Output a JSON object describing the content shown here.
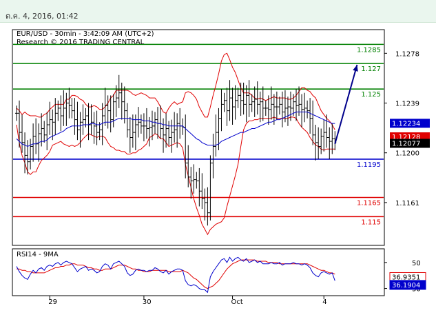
{
  "header": {
    "timestamp": "ต.ค. 4, 2016, 01:42"
  },
  "chart_data": {
    "type": "line",
    "title": "EUR/USD - 30min - 3:42:09 AM (UTC+2)",
    "subtitle": "Research © 2016 TRADING CENTRAL",
    "price_range": [
      1.1128,
      1.1296
    ],
    "yticks": [
      {
        "value": 1.1278,
        "label": "1.1278"
      },
      {
        "value": 1.1239,
        "label": "1.1239"
      },
      {
        "value": 1.12,
        "label": "1.1200"
      },
      {
        "value": 1.1161,
        "label": "1.1161"
      }
    ],
    "x_ticks": [
      {
        "index": 12,
        "label": "29"
      },
      {
        "index": 46,
        "label": "30"
      },
      {
        "index": 79,
        "label": ""
      },
      {
        "index": 78,
        "label": "Oct"
      },
      {
        "index": 111,
        "label": "4"
      }
    ],
    "levels": [
      {
        "value": 1.1285,
        "label": "1.1285",
        "color": "#008000"
      },
      {
        "value": 1.127,
        "label": "1.127",
        "color": "#008000"
      },
      {
        "value": 1.125,
        "label": "1.125",
        "color": "#008000"
      },
      {
        "value": 1.1195,
        "label": "1.1195",
        "color": "#0000cc"
      },
      {
        "value": 1.1165,
        "label": "1.1165",
        "color": "#e00000"
      },
      {
        "value": 1.115,
        "label": "1.115",
        "color": "#e00000"
      }
    ],
    "price_badges": [
      {
        "value": 1.12234,
        "label": "1.12234",
        "bg": "#0000cc",
        "fg": "#ffffff"
      },
      {
        "value": 1.12128,
        "label": "1.12128",
        "bg": "#e00000",
        "fg": "#ffffff"
      },
      {
        "value": 1.12077,
        "label": "1.12077",
        "bg": "#000000",
        "fg": "#ffffff"
      }
    ],
    "forecast_arrow": {
      "from": [
        115,
        1.1207
      ],
      "to": [
        123,
        1.1269
      ],
      "color": "#00008b"
    },
    "series": [
      {
        "name": "EUR/USD",
        "close": [
          1.1231,
          1.1216,
          1.1208,
          1.1198,
          1.1193,
          1.1205,
          1.1213,
          1.1207,
          1.1215,
          1.1219,
          1.1214,
          1.1222,
          1.1226,
          1.1224,
          1.1231,
          1.1235,
          1.1229,
          1.1235,
          1.1239,
          1.1237,
          1.1233,
          1.1226,
          1.1218,
          1.1224,
          1.1226,
          1.1229,
          1.1222,
          1.1224,
          1.1221,
          1.1216,
          1.1218,
          1.1229,
          1.1237,
          1.1233,
          1.1226,
          1.124,
          1.1243,
          1.1247,
          1.124,
          1.1233,
          1.1218,
          1.1212,
          1.1216,
          1.1222,
          1.1224,
          1.1221,
          1.1221,
          1.1219,
          1.122,
          1.1221,
          1.1226,
          1.1223,
          1.1219,
          1.1214,
          1.1219,
          1.1212,
          1.1216,
          1.1218,
          1.1223,
          1.1221,
          1.122,
          1.1192,
          1.1181,
          1.1178,
          1.1179,
          1.1178,
          1.117,
          1.1164,
          1.1161,
          1.1153,
          1.1192,
          1.1205,
          1.1216,
          1.1227,
          1.1238,
          1.1241,
          1.1233,
          1.1243,
          1.1236,
          1.1241,
          1.1245,
          1.1241,
          1.1238,
          1.1245,
          1.1238,
          1.124,
          1.1242,
          1.1238,
          1.124,
          1.1235,
          1.1235,
          1.1234,
          1.1238,
          1.1236,
          1.1236,
          1.1238,
          1.1232,
          1.1235,
          1.1236,
          1.1235,
          1.124,
          1.1237,
          1.1238,
          1.1234,
          1.1235,
          1.1233,
          1.1227,
          1.1214,
          1.1208,
          1.1205,
          1.1213,
          1.1216,
          1.1212,
          1.1209,
          1.1211,
          1.1208
        ]
      }
    ],
    "bollinger_upper": [
      1.1235,
      1.1233,
      1.123,
      1.1232,
      1.123,
      1.1229,
      1.1229,
      1.1229,
      1.1228,
      1.1228,
      1.123,
      1.1231,
      1.1234,
      1.1236,
      1.1238,
      1.1238,
      1.1238,
      1.1238,
      1.1242,
      1.1242,
      1.1245,
      1.1245,
      1.1244,
      1.1242,
      1.1241,
      1.1238,
      1.1236,
      1.1236,
      1.1237,
      1.1236,
      1.1234,
      1.1234,
      1.1236,
      1.1239,
      1.1243,
      1.1245,
      1.1249,
      1.1249,
      1.1249,
      1.1249,
      1.1249,
      1.1248,
      1.1246,
      1.1245,
      1.1246,
      1.1247,
      1.1246,
      1.1245,
      1.1243,
      1.1243,
      1.1243,
      1.124,
      1.1236,
      1.1232,
      1.1231,
      1.1235,
      1.1238,
      1.124,
      1.1238,
      1.1239,
      1.124,
      1.1247,
      1.1248,
      1.1247,
      1.1245,
      1.1242,
      1.1236,
      1.1232,
      1.1228,
      1.1228,
      1.1236,
      1.1245,
      1.1253,
      1.1262,
      1.1272,
      1.1277,
      1.1278,
      1.1273,
      1.1267,
      1.1263,
      1.1257,
      1.1251,
      1.1247,
      1.1247,
      1.1247,
      1.1245,
      1.1243,
      1.1242,
      1.1243,
      1.1242,
      1.1241,
      1.1242,
      1.1243,
      1.1244,
      1.1243,
      1.1243,
      1.1243,
      1.1243,
      1.1242,
      1.1242,
      1.1243,
      1.1245,
      1.1248,
      1.1251,
      1.1251,
      1.1249,
      1.1248,
      1.1245,
      1.1243,
      1.1238,
      1.1233,
      1.123,
      1.1227,
      1.1225,
      1.1222,
      1.1218
    ],
    "bollinger_lower": [
      1.1222,
      1.1208,
      1.1198,
      1.1192,
      1.1185,
      1.1183,
      1.1185,
      1.1185,
      1.119,
      1.1194,
      1.1196,
      1.1198,
      1.1201,
      1.1206,
      1.1207,
      1.1208,
      1.1209,
      1.1207,
      1.1206,
      1.1205,
      1.1206,
      1.1205,
      1.1206,
      1.1208,
      1.1211,
      1.1213,
      1.1215,
      1.1214,
      1.1213,
      1.1212,
      1.1213,
      1.1213,
      1.1212,
      1.1208,
      1.1205,
      1.1204,
      1.1202,
      1.1202,
      1.1201,
      1.1201,
      1.1199,
      1.1199,
      1.12,
      1.12,
      1.1202,
      1.1203,
      1.1205,
      1.1207,
      1.1212,
      1.1213,
      1.1215,
      1.1214,
      1.1211,
      1.1211,
      1.1208,
      1.1205,
      1.1206,
      1.1207,
      1.1208,
      1.1207,
      1.1204,
      1.1191,
      1.1182,
      1.1173,
      1.1164,
      1.1157,
      1.1151,
      1.1144,
      1.114,
      1.1136,
      1.114,
      1.1142,
      1.1144,
      1.1145,
      1.1146,
      1.1149,
      1.1158,
      1.1166,
      1.1174,
      1.1182,
      1.1191,
      1.1205,
      1.1218,
      1.1223,
      1.1225,
      1.1225,
      1.1226,
      1.1226,
      1.1227,
      1.1227,
      1.1227,
      1.1227,
      1.1227,
      1.1228,
      1.1227,
      1.1227,
      1.1227,
      1.1227,
      1.1227,
      1.1228,
      1.1228,
      1.1227,
      1.1223,
      1.122,
      1.1218,
      1.1216,
      1.1212,
      1.1209,
      1.1206,
      1.1205,
      1.1203,
      1.1202,
      1.1203,
      1.1203,
      1.1203,
      1.1203
    ],
    "moving_average": [
      1.1211,
      1.1209,
      1.1207,
      1.1206,
      1.1205,
      1.1206,
      1.1207,
      1.1207,
      1.1208,
      1.1209,
      1.1209,
      1.121,
      1.1212,
      1.1213,
      1.1214,
      1.1215,
      1.1216,
      1.1217,
      1.1219,
      1.122,
      1.1221,
      1.1221,
      1.1221,
      1.1221,
      1.1222,
      1.1222,
      1.1222,
      1.1223,
      1.1223,
      1.1222,
      1.1222,
      1.1223,
      1.1224,
      1.1224,
      1.1224,
      1.1225,
      1.1226,
      1.1227,
      1.1227,
      1.1227,
      1.1227,
      1.1227,
      1.1226,
      1.1226,
      1.1226,
      1.1226,
      1.1225,
      1.1225,
      1.1225,
      1.1224,
      1.1224,
      1.1223,
      1.1223,
      1.1222,
      1.1222,
      1.1221,
      1.1221,
      1.1221,
      1.1221,
      1.1221,
      1.1221,
      1.1219,
      1.1217,
      1.1215,
      1.1213,
      1.1211,
      1.121,
      1.1208,
      1.1207,
      1.1206,
      1.1206,
      1.1206,
      1.1206,
      1.1207,
      1.1209,
      1.121,
      1.1211,
      1.1212,
      1.1213,
      1.1214,
      1.1215,
      1.1216,
      1.1216,
      1.1217,
      1.1218,
      1.1219,
      1.1219,
      1.122,
      1.1221,
      1.1222,
      1.1223,
      1.1224,
      1.1224,
      1.1225,
      1.1226,
      1.1226,
      1.1227,
      1.1228,
      1.1229,
      1.123,
      1.1231,
      1.1232,
      1.1232,
      1.1232,
      1.1232,
      1.1232,
      1.1231,
      1.123,
      1.1229,
      1.1228,
      1.1227,
      1.1226,
      1.1225,
      1.1224,
      1.1223,
      1.1223
    ],
    "rsi": {
      "title": "RSI14 - 9MA",
      "range": [
        25,
        60
      ],
      "yticks": [
        {
          "value": 50,
          "label": "50"
        },
        {
          "value": 30,
          "label": "30"
        }
      ],
      "badges": [
        {
          "value": 36.9351,
          "label": "36.9351",
          "bg": "#ffffff",
          "fg": "#000000",
          "border": "#e00000"
        },
        {
          "value": 36.1904,
          "label": "36.1904",
          "bg": "#0000cc",
          "fg": "#ffffff",
          "border": "#0000cc"
        }
      ],
      "rsi_values": [
        47,
        43,
        40,
        38,
        37,
        41,
        44,
        42,
        45,
        46,
        44,
        47,
        48,
        47,
        49,
        50,
        48,
        50,
        51,
        50,
        49,
        46,
        43,
        45,
        46,
        47,
        44,
        45,
        44,
        42,
        43,
        47,
        49,
        48,
        45,
        49,
        50,
        51,
        49,
        47,
        42,
        40,
        41,
        44,
        45,
        44,
        44,
        43,
        44,
        44,
        46,
        45,
        43,
        42,
        44,
        41,
        43,
        44,
        45,
        45,
        44,
        36,
        33,
        32,
        33,
        32,
        30,
        29,
        29,
        27,
        39,
        43,
        46,
        49,
        52,
        53,
        50,
        54,
        51,
        53,
        54,
        52,
        51,
        53,
        50,
        51,
        52,
        50,
        51,
        49,
        49,
        49,
        50,
        49,
        49,
        50,
        48,
        49,
        49,
        49,
        50,
        49,
        49,
        48,
        49,
        48,
        46,
        42,
        40,
        39,
        42,
        43,
        42,
        41,
        42,
        36
      ],
      "ma_values": [
        45,
        45,
        44,
        44,
        43,
        43,
        42,
        42,
        42,
        42,
        42,
        43,
        44,
        45,
        46,
        46,
        47,
        47,
        48,
        48,
        49,
        49,
        48,
        48,
        48,
        47,
        46,
        46,
        45,
        45,
        44,
        44,
        45,
        45,
        45,
        46,
        47,
        48,
        48,
        48,
        47,
        46,
        45,
        45,
        44,
        44,
        43,
        43,
        43,
        44,
        44,
        44,
        44,
        44,
        44,
        43,
        43,
        43,
        43,
        43,
        44,
        43,
        42,
        40,
        38,
        37,
        35,
        33,
        31,
        30,
        31,
        32,
        34,
        36,
        39,
        42,
        45,
        47,
        49,
        50,
        51,
        52,
        52,
        52,
        52,
        52,
        52,
        51,
        51,
        51,
        51,
        50,
        50,
        50,
        50,
        49,
        49,
        49,
        49,
        49,
        49,
        49,
        49,
        49,
        49,
        49,
        48,
        47,
        46,
        45,
        44,
        44,
        43,
        42,
        42,
        41
      ]
    }
  }
}
